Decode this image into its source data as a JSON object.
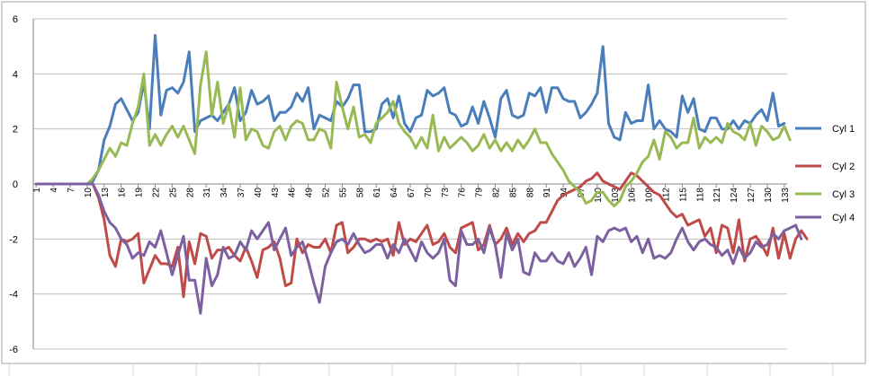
{
  "chart_data": {
    "type": "line",
    "title": "",
    "xlabel": "",
    "ylabel": "",
    "ylim": [
      -6,
      6
    ],
    "yticks": [
      -6,
      -4,
      -2,
      0,
      2,
      4,
      6
    ],
    "x_label_interval": 3,
    "legend_position": "right",
    "series": [
      {
        "name": "Cyl 1",
        "color": "#4a7ebb",
        "values": [
          0,
          0,
          0,
          0,
          0,
          0,
          0,
          0,
          0,
          0,
          0.1,
          0.5,
          1.6,
          2.1,
          2.9,
          3.1,
          2.7,
          2.3,
          2.6,
          3.7,
          2.0,
          5.4,
          2.5,
          3.4,
          3.5,
          3.3,
          3.7,
          4.8,
          1.9,
          2.3,
          2.4,
          2.5,
          2.3,
          2.6,
          2.9,
          3.5,
          2.3,
          2.6,
          3.4,
          2.9,
          3.0,
          3.2,
          2.3,
          2.6,
          2.6,
          2.8,
          3.3,
          3.0,
          3.5,
          2.0,
          2.5,
          2.4,
          2.3,
          3.0,
          2.8,
          3.1,
          3.6,
          3.6,
          1.9,
          1.9,
          2.0,
          2.9,
          3.1,
          2.4,
          3.2,
          2.2,
          1.9,
          2.4,
          2.5,
          3.4,
          3.2,
          3.3,
          3.5,
          2.6,
          2.5,
          2.1,
          2.2,
          2.8,
          2.2,
          3.0,
          2.4,
          1.7,
          3.1,
          3.4,
          2.5,
          2.4,
          2.5,
          3.3,
          3.2,
          3.5,
          2.6,
          3.5,
          3.5,
          3.1,
          3.0,
          3.0,
          2.4,
          2.6,
          2.9,
          3.3,
          5.0,
          2.2,
          1.7,
          1.6,
          2.6,
          2.2,
          2.3,
          2.3,
          3.6,
          2.0,
          2.3,
          2.0,
          1.9,
          1.7,
          3.2,
          2.6,
          3.1,
          2.0,
          1.9,
          2.4,
          2.4,
          2.0,
          2.0,
          2.3,
          2.0,
          2.3,
          2.2,
          2.5,
          2.7,
          2.3,
          3.3,
          2.1,
          2.2
        ]
      },
      {
        "name": "Cyl 2",
        "color": "#be4b48",
        "values": [
          0,
          0,
          0,
          0,
          0,
          0,
          0,
          0,
          0,
          0,
          0,
          -0.5,
          -1.3,
          -2.6,
          -3.0,
          -2.0,
          -2.1,
          -2.0,
          -1.8,
          -3.6,
          -3.1,
          -2.6,
          -2.9,
          -2.9,
          -3.0,
          -2.3,
          -4.1,
          -2.1,
          -2.9,
          -1.8,
          -1.9,
          -2.7,
          -2.4,
          -2.4,
          -2.3,
          -2.6,
          -2.8,
          -2.3,
          -2.8,
          -3.4,
          -2.4,
          -2.3,
          -2.1,
          -2.7,
          -3.7,
          -3.6,
          -2.0,
          -2.5,
          -2.2,
          -2.3,
          -2.3,
          -2.0,
          -2.5,
          -1.5,
          -1.4,
          -2.5,
          -2.3,
          -2.0,
          -2.0,
          -2.1,
          -2.0,
          -2.1,
          -2.0,
          -2.6,
          -1.4,
          -2.2,
          -2.0,
          -2.1,
          -1.8,
          -1.5,
          -2.2,
          -2.1,
          -1.8,
          -2.3,
          -2.5,
          -1.6,
          -1.5,
          -1.4,
          -2.4,
          -2.2,
          -1.5,
          -2.2,
          -2.0,
          -1.6,
          -2.2,
          -1.8,
          -2.1,
          -1.8,
          -1.7,
          -1.4,
          -1.4,
          -1.0,
          -0.6,
          -0.4,
          -0.3,
          -0.2,
          -0.1,
          0.1,
          0.2,
          0.4,
          0.1,
          0,
          -0.1,
          -0.2,
          0.1,
          0.4,
          0.3,
          0.1,
          -0.1,
          -0.3,
          -0.4,
          -0.7,
          -1.0,
          -1.2,
          -1.1,
          -1.5,
          -1.4,
          -1.3,
          -1.9,
          -1.6,
          -2.5,
          -1.5,
          -1.6,
          -2.5,
          -1.3,
          -2.8,
          -2.0,
          -1.9,
          -2.2,
          -2.6,
          -1.6,
          -2.7,
          -1.8,
          -2.7,
          -2.0,
          -1.7,
          -2.0
        ]
      },
      {
        "name": "Cyl 3",
        "color": "#98b954",
        "values": [
          0,
          0,
          0,
          0,
          0,
          0,
          0,
          0,
          0,
          0,
          0.2,
          0.5,
          0.9,
          1.3,
          1.0,
          1.5,
          1.4,
          2.2,
          2.8,
          4.0,
          1.4,
          1.8,
          1.4,
          1.8,
          2.1,
          1.7,
          2.1,
          1.6,
          1.1,
          3.6,
          4.8,
          2.5,
          3.7,
          2.2,
          2.9,
          1.7,
          3.5,
          1.6,
          2.0,
          1.9,
          1.4,
          1.3,
          1.9,
          2.1,
          1.6,
          2.1,
          2.3,
          2.2,
          1.6,
          1.6,
          2.0,
          1.9,
          1.3,
          3.7,
          2.8,
          2.0,
          2.8,
          1.7,
          1.8,
          1.5,
          2.2,
          2.4,
          2.6,
          3.0,
          2.2,
          1.9,
          1.7,
          1.3,
          1.7,
          1.3,
          2.5,
          1.2,
          1.7,
          1.3,
          1.5,
          1.7,
          1.5,
          1.2,
          1.4,
          1.8,
          1.3,
          1.6,
          1.2,
          1.5,
          1.2,
          1.6,
          1.3,
          1.6,
          2.0,
          1.5,
          1.5,
          1.1,
          0.8,
          0.5,
          0.1,
          -0.1,
          -0.3,
          -0.7,
          -0.6,
          -0.3,
          -0.3,
          -0.6,
          -0.8,
          -0.6,
          -0.1,
          0.1,
          0.4,
          0.8,
          1.0,
          1.6,
          0.9,
          1.9,
          1.7,
          1.3,
          1.5,
          1.5,
          2.4,
          1.3,
          1.7,
          1.5,
          1.7,
          1.5,
          2.2,
          1.9,
          1.8,
          1.6,
          2.2,
          1.4,
          2.1,
          1.9,
          1.6,
          1.7,
          2.1,
          1.6
        ]
      },
      {
        "name": "Cyl 4",
        "color": "#7d60a0",
        "values": [
          0,
          0,
          0,
          0,
          0,
          0,
          0,
          0,
          0,
          0,
          0,
          -0.4,
          -1.0,
          -1.4,
          -1.6,
          -2.0,
          -2.2,
          -2.7,
          -2.5,
          -2.6,
          -2.1,
          -2.3,
          -1.7,
          -2.5,
          -3.3,
          -2.6,
          -1.9,
          -3.5,
          -3.5,
          -4.7,
          -2.7,
          -3.7,
          -3.3,
          -2.3,
          -2.7,
          -2.6,
          -2.1,
          -2.4,
          -1.7,
          -2.0,
          -1.7,
          -1.4,
          -2.4,
          -2.0,
          -1.6,
          -2.6,
          -2.3,
          -2.1,
          -2.8,
          -3.6,
          -4.3,
          -3.0,
          -2.5,
          -2.1,
          -2.0,
          -2.2,
          -1.8,
          -2.2,
          -2.5,
          -2.4,
          -2.2,
          -2.2,
          -2.7,
          -2.2,
          -2.5,
          -2.0,
          -2.4,
          -2.8,
          -2.1,
          -2.5,
          -2.7,
          -2.5,
          -2.0,
          -3.5,
          -3.7,
          -1.7,
          -2.2,
          -2.2,
          -2.0,
          -2.5,
          -1.6,
          -2.2,
          -3.4,
          -1.8,
          -2.4,
          -2.0,
          -3.2,
          -3.3,
          -2.5,
          -2.8,
          -2.8,
          -2.5,
          -2.8,
          -2.9,
          -2.5,
          -3.0,
          -2.7,
          -2.3,
          -3.3,
          -1.9,
          -2.1,
          -1.7,
          -1.6,
          -1.7,
          -1.6,
          -2.1,
          -1.9,
          -2.5,
          -2.0,
          -2.7,
          -2.6,
          -2.7,
          -2.5,
          -2.0,
          -1.6,
          -2.1,
          -2.4,
          -2.1,
          -2.0,
          -2.2,
          -2.3,
          -2.6,
          -2.4,
          -2.9,
          -2.3,
          -2.7,
          -2.5,
          -2.1,
          -2.3,
          -2.2,
          -1.8,
          -2.0,
          -1.7,
          -1.6,
          -1.5,
          -2.0
        ]
      }
    ]
  }
}
